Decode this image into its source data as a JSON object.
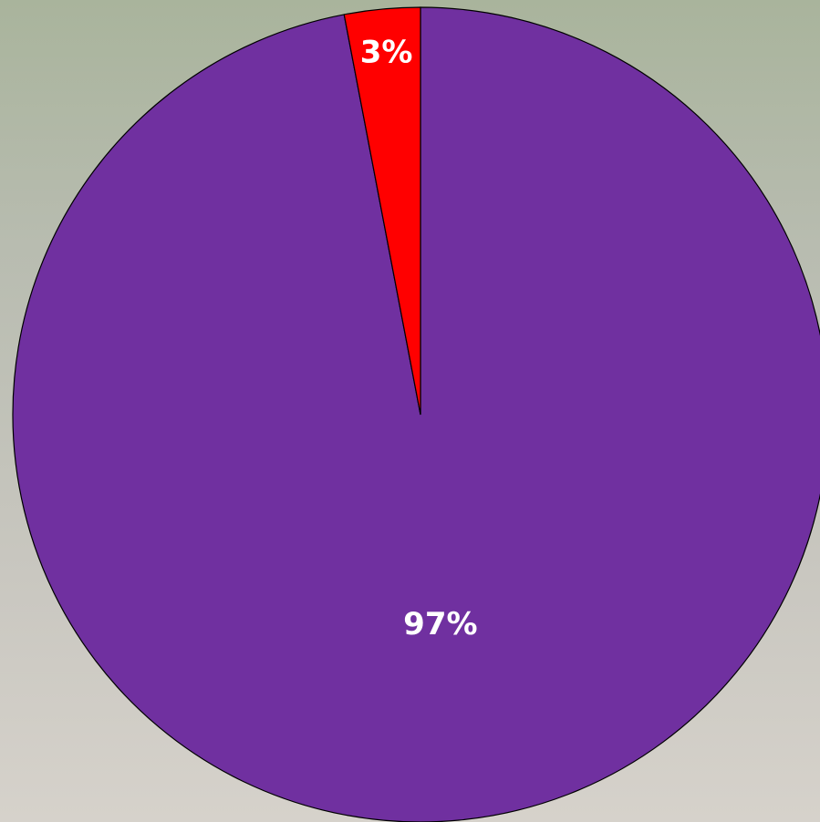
{
  "chart_data": {
    "type": "pie",
    "values": [
      97,
      3
    ],
    "value_labels": [
      "97%",
      "3%"
    ],
    "colors": [
      "#7030a0",
      "#ff0000"
    ],
    "label_color": "#ffffff"
  }
}
